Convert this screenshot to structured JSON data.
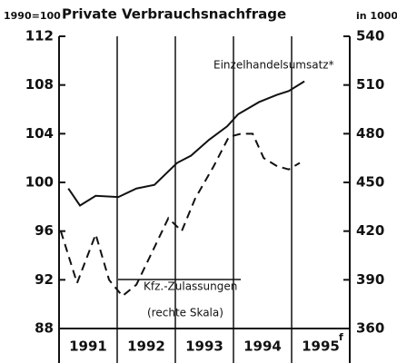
{
  "chart_data": {
    "type": "line",
    "title": "Private Verbrauchsnachfrage",
    "y_unit": "1990=100",
    "y2_unit": "in 1000",
    "xlim": [
      1991,
      1996
    ],
    "xticks": [
      {
        "value": 1991.5,
        "label": "1991"
      },
      {
        "value": 1992.5,
        "label": "1992"
      },
      {
        "value": 1993.5,
        "label": "1993"
      },
      {
        "value": 1994.5,
        "label": "1994"
      },
      {
        "value": 1995.5,
        "label": "1995"
      }
    ],
    "last_xtick_footnote": "f",
    "xgrid": [
      1992,
      1993,
      1994,
      1995
    ],
    "ylim": [
      88,
      112
    ],
    "yticks": [
      88,
      92,
      96,
      100,
      104,
      108,
      112
    ],
    "y2lim": [
      360,
      540
    ],
    "y2ticks": [
      360,
      390,
      420,
      450,
      480,
      510,
      540
    ],
    "series": [
      {
        "name": "Einzelhandelsumsatz*",
        "color": "#111111",
        "dash": false,
        "x": [
          1991.16,
          1991.36,
          1991.63,
          1992.02,
          1992.33,
          1992.64,
          1993.03,
          1993.27,
          1993.58,
          1993.89,
          1994.08,
          1994.44,
          1994.75,
          1994.95,
          1995.22
        ],
        "values": [
          99.5,
          98.1,
          98.9,
          98.8,
          99.5,
          99.8,
          101.6,
          102.2,
          103.5,
          104.6,
          105.6,
          106.6,
          107.2,
          107.5,
          108.3
        ]
      },
      {
        "name": "Kfz.-Zulassungen",
        "note": "(rechte Skala)",
        "color": "#111111",
        "dash": true,
        "axis": "y2",
        "x": [
          1991.03,
          1991.31,
          1991.63,
          1991.86,
          1992.09,
          1992.33,
          1992.64,
          1992.88,
          1993.11,
          1993.34,
          1993.66,
          1993.92,
          1994.13,
          1994.33,
          1994.52,
          1994.75,
          1994.95,
          1995.14
        ],
        "values": [
          420,
          388,
          418,
          390,
          380,
          387,
          410,
          428,
          420,
          440,
          460,
          478,
          480,
          480,
          465,
          460,
          458,
          462
        ]
      }
    ]
  }
}
